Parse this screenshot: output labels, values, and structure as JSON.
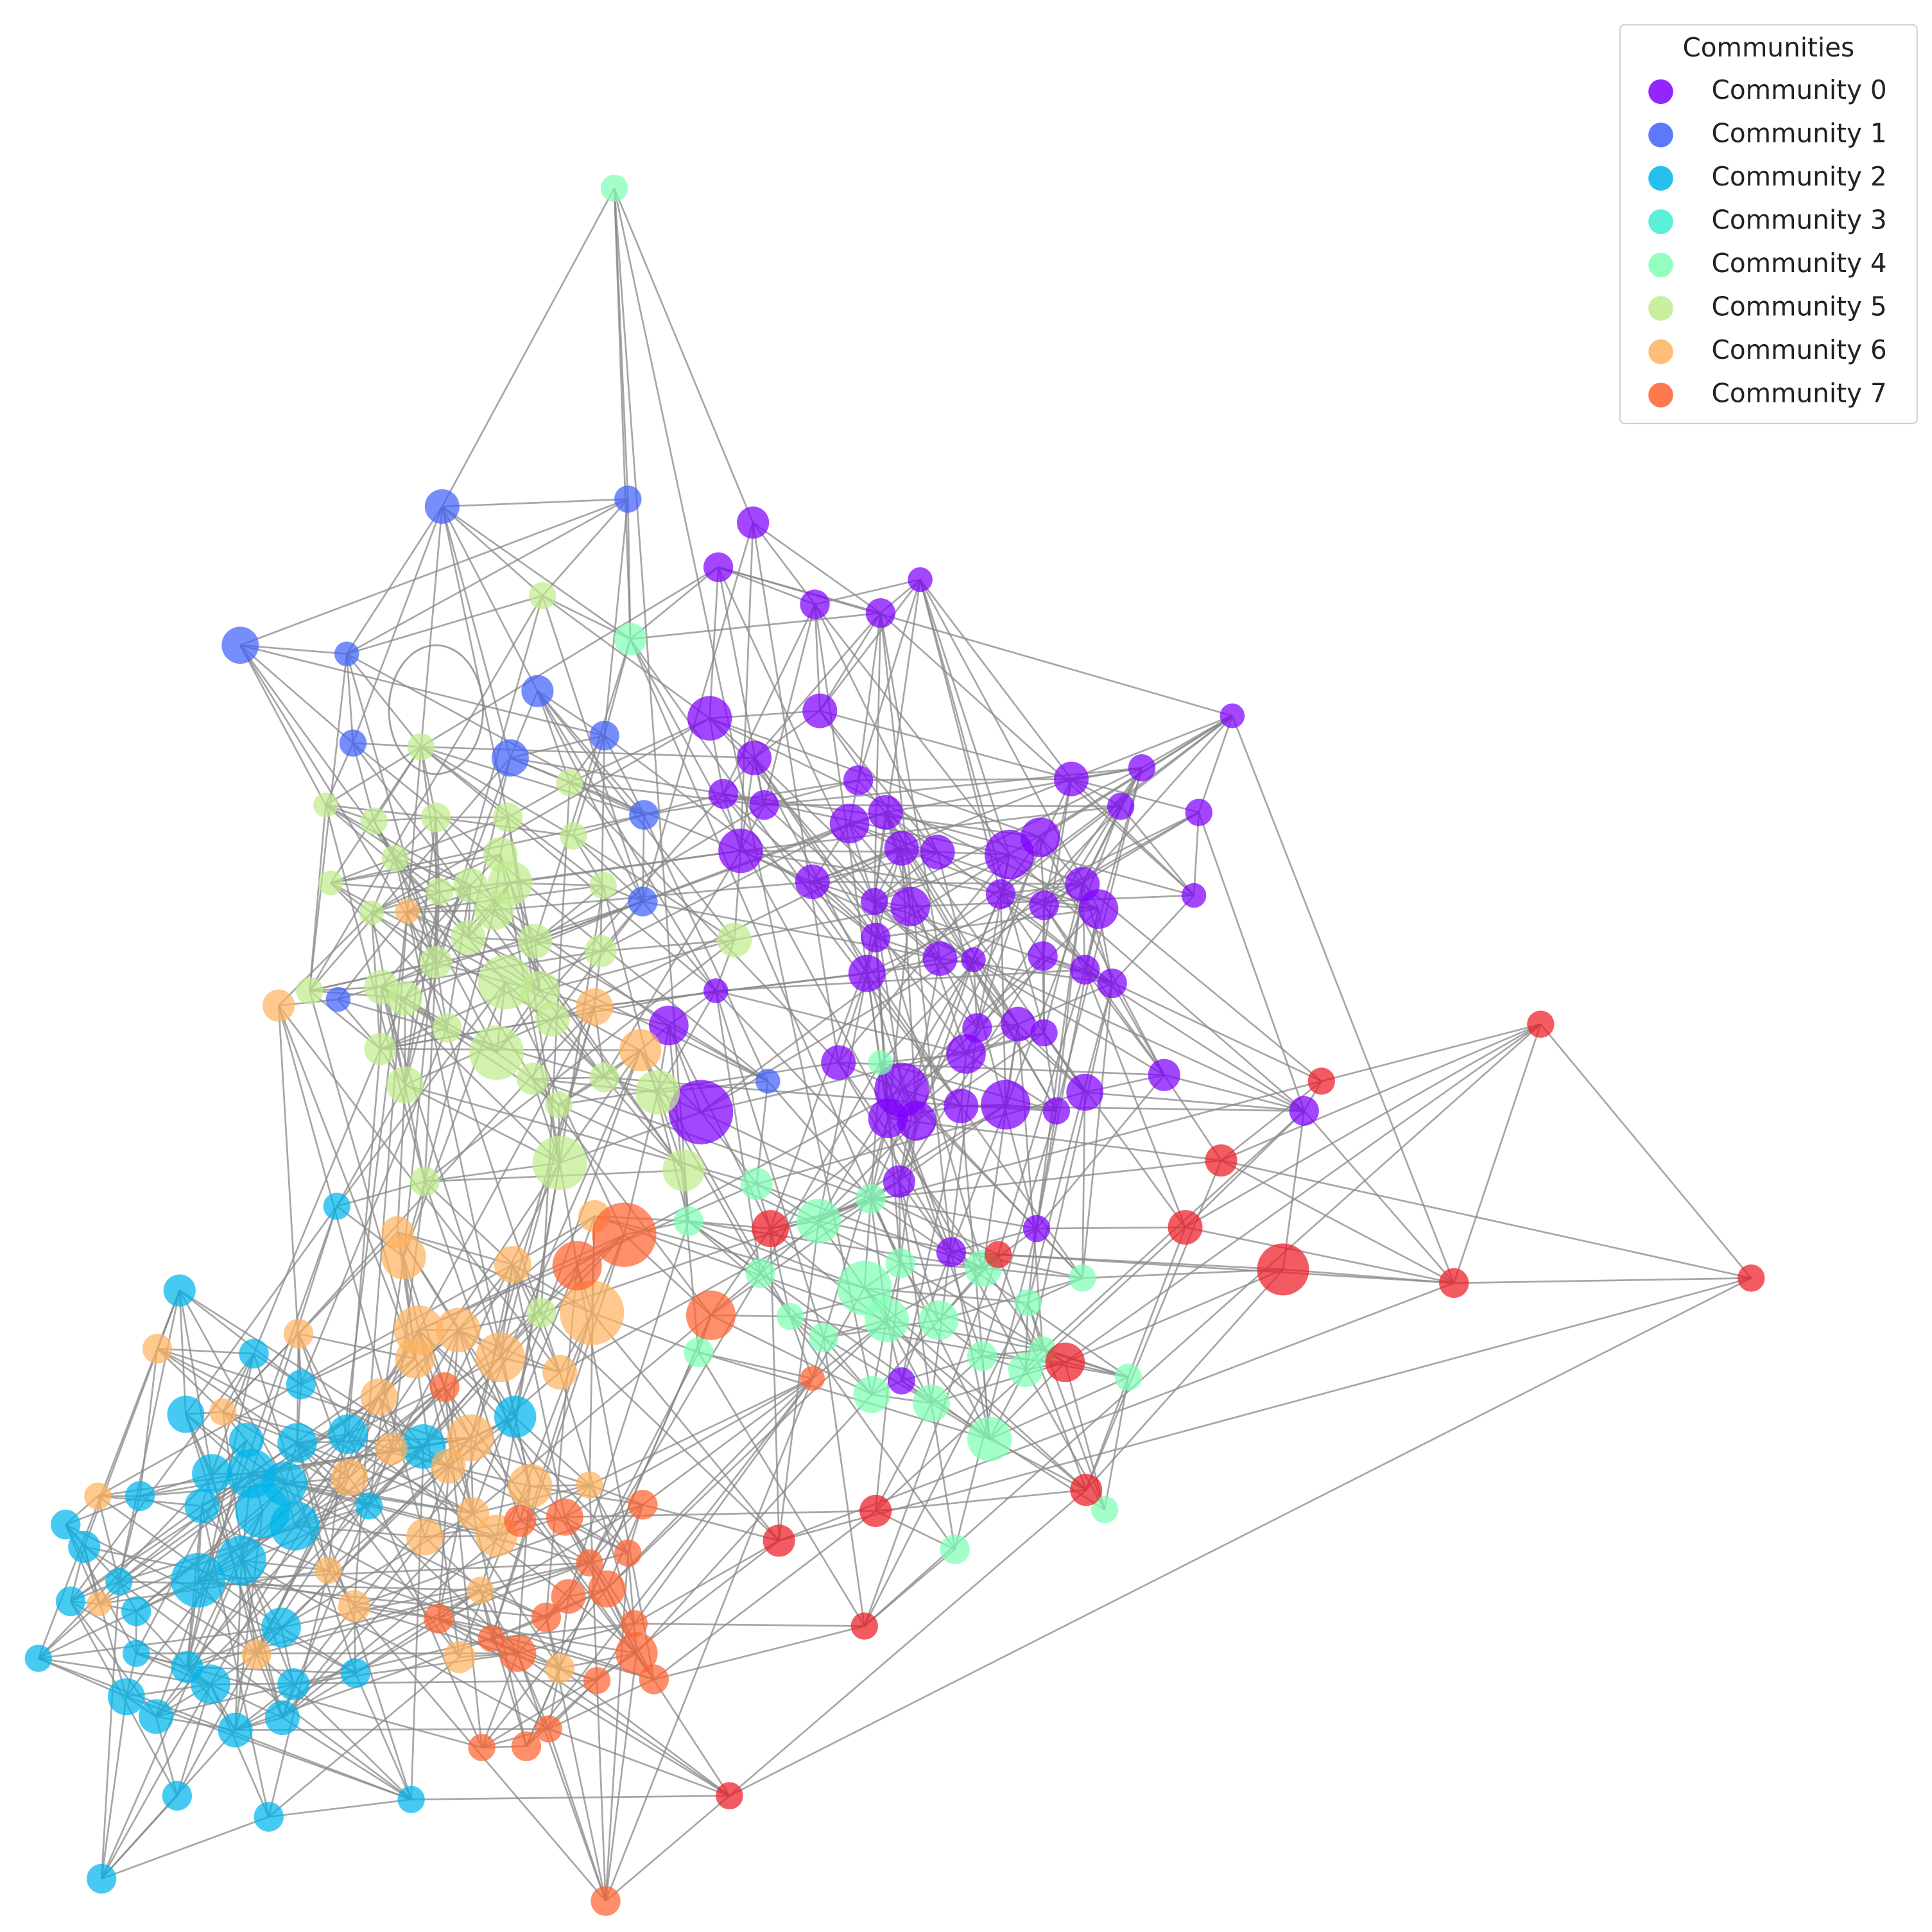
{
  "legend": {
    "title": "Communities",
    "items": [
      {
        "label": "Community 0",
        "color": "#8000ff"
      },
      {
        "label": "Community 1",
        "color": "#4062fa"
      },
      {
        "label": "Community 2",
        "color": "#00b5eb"
      },
      {
        "label": "Community 3",
        "color": "#40ecd4"
      },
      {
        "label": "Community 4",
        "color": "#80ffb4"
      },
      {
        "label": "Community 5",
        "color": "#c0eb8d"
      },
      {
        "label": "Community 6",
        "color": "#ffb360"
      },
      {
        "label": "Community 7",
        "color": "#ff6230"
      }
    ]
  }
}
